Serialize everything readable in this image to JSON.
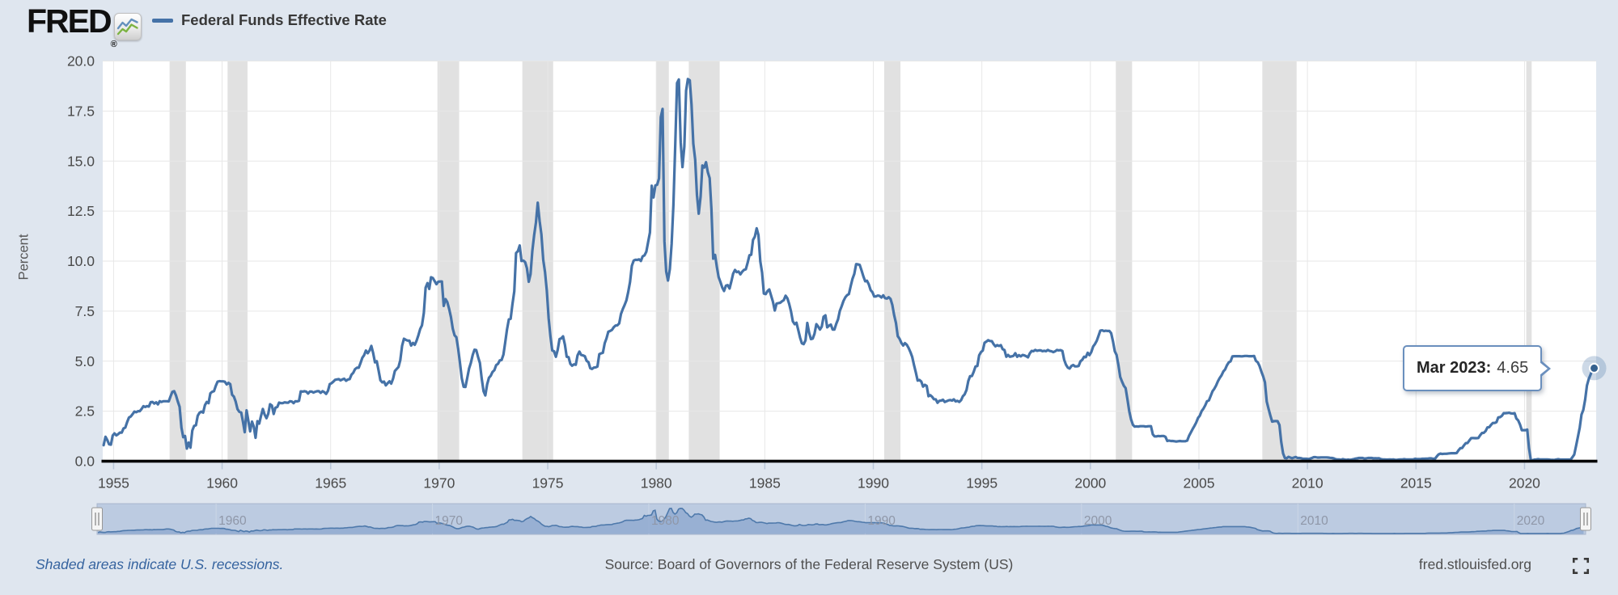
{
  "header": {
    "logo_text": "FRED",
    "logo_registered": "®",
    "legend": {
      "series_label": "Federal Funds Effective Rate",
      "series_color": "#4572a7"
    }
  },
  "tooltip": {
    "label": "Mar 2023:",
    "value": "4.65"
  },
  "footer": {
    "recession_note": "Shaded areas indicate U.S. recessions.",
    "source": "Source: Board of Governors of the Federal Reserve System (US)",
    "site": "fred.stlouisfed.org"
  },
  "chart_data": {
    "type": "line",
    "title": "Federal Funds Effective Rate",
    "ylabel": "Percent",
    "ylim": [
      0,
      20
    ],
    "y_ticks": [
      "0.0",
      "2.5",
      "5.0",
      "7.5",
      "10.0",
      "12.5",
      "15.0",
      "17.5",
      "20.0"
    ],
    "x_ticks": [
      1955,
      1960,
      1965,
      1970,
      1975,
      1980,
      1985,
      1990,
      1995,
      2000,
      2005,
      2010,
      2015,
      2020
    ],
    "grid": true,
    "legend_position": "top-left",
    "last_point": {
      "date": "Mar 2023",
      "value": 4.65
    },
    "colors": {
      "series": "#4572a7",
      "grid": "#e7e7e7",
      "recession_band": "#e1e1e1",
      "axis_line": "#000000",
      "plot_bg": "#ffffff",
      "page_bg": "#dfe6ef",
      "nav_track": "#bccbe1",
      "nav_area": "#8fa9d0",
      "nav_line": "#4e79ab"
    },
    "recessions": [
      {
        "from": 1957.58,
        "to": 1958.33
      },
      {
        "from": 1960.25,
        "to": 1961.17
      },
      {
        "from": 1969.92,
        "to": 1970.92
      },
      {
        "from": 1973.83,
        "to": 1975.25
      },
      {
        "from": 1980.0,
        "to": 1980.58
      },
      {
        "from": 1981.5,
        "to": 1982.92
      },
      {
        "from": 1990.5,
        "to": 1991.25
      },
      {
        "from": 2001.17,
        "to": 2001.92
      },
      {
        "from": 2007.92,
        "to": 2009.5
      },
      {
        "from": 2020.08,
        "to": 2020.33
      }
    ],
    "navigator": {
      "labels": [
        1960,
        1970,
        1980,
        1990,
        2000,
        2010,
        2020
      ]
    },
    "series": [
      {
        "name": "Federal Funds Effective Rate",
        "color": "#4572a7",
        "units": "Percent",
        "frequency": "monthly",
        "start": "1954-07",
        "end": "2023-03",
        "values": [
          0.8,
          1.22,
          1.06,
          0.85,
          0.83,
          1.28,
          1.39,
          1.29,
          1.35,
          1.43,
          1.43,
          1.64,
          1.68,
          1.96,
          2.18,
          2.24,
          2.35,
          2.48,
          2.45,
          2.5,
          2.5,
          2.62,
          2.75,
          2.71,
          2.75,
          2.73,
          2.95,
          2.96,
          2.88,
          2.94,
          2.84,
          3.0,
          2.96,
          3.0,
          3.0,
          3.0,
          2.99,
          3.24,
          3.47,
          3.5,
          3.28,
          2.98,
          2.72,
          1.67,
          1.2,
          1.26,
          0.63,
          0.93,
          0.68,
          1.53,
          1.76,
          1.8,
          2.27,
          2.42,
          2.48,
          2.43,
          2.8,
          2.96,
          2.9,
          3.39,
          3.47,
          3.5,
          3.76,
          3.98,
          4.0,
          3.99,
          3.99,
          3.97,
          3.84,
          3.92,
          3.85,
          3.32,
          3.23,
          2.98,
          2.6,
          2.47,
          2.44,
          1.98,
          1.45,
          2.54,
          2.02,
          1.49,
          1.98,
          1.73,
          1.17,
          2.0,
          1.88,
          2.26,
          2.61,
          2.33,
          2.15,
          2.37,
          2.85,
          2.78,
          2.36,
          2.68,
          2.71,
          2.93,
          2.9,
          2.9,
          2.94,
          2.93,
          2.92,
          3.0,
          2.98,
          2.9,
          3.0,
          2.99,
          3.02,
          3.49,
          3.48,
          3.5,
          3.48,
          3.38,
          3.48,
          3.48,
          3.43,
          3.47,
          3.5,
          3.5,
          3.42,
          3.5,
          3.45,
          3.36,
          3.52,
          3.85,
          3.9,
          3.98,
          4.07,
          4.09,
          4.1,
          4.04,
          4.09,
          4.12,
          4.02,
          4.08,
          4.1,
          4.32,
          4.42,
          4.6,
          4.67,
          4.67,
          4.9,
          5.17,
          5.3,
          5.53,
          5.4,
          5.53,
          5.76,
          5.4,
          4.94,
          5.0,
          4.53,
          4.05,
          3.94,
          3.98,
          3.79,
          3.9,
          3.99,
          3.88,
          4.13,
          4.51,
          4.61,
          4.71,
          5.05,
          5.76,
          6.12,
          6.07,
          6.03,
          6.03,
          5.78,
          5.91,
          5.82,
          6.02,
          6.3,
          6.61,
          6.79,
          7.41,
          8.67,
          8.9,
          8.61,
          9.19,
          9.15,
          9.0,
          8.85,
          8.97,
          8.98,
          8.98,
          7.76,
          8.1,
          7.95,
          7.61,
          7.21,
          6.62,
          6.29,
          6.2,
          5.6,
          4.9,
          4.14,
          3.72,
          3.71,
          4.15,
          4.63,
          4.91,
          5.31,
          5.57,
          5.55,
          5.2,
          4.91,
          4.14,
          3.5,
          3.29,
          3.83,
          4.17,
          4.27,
          4.46,
          4.55,
          4.8,
          4.87,
          5.04,
          5.06,
          5.33,
          5.94,
          6.58,
          7.09,
          7.12,
          7.84,
          8.49,
          10.4,
          10.5,
          10.78,
          10.01,
          10.03,
          9.95,
          9.65,
          8.97,
          9.35,
          10.51,
          11.31,
          11.93,
          12.92,
          12.01,
          11.34,
          10.06,
          9.45,
          8.53,
          7.13,
          6.24,
          5.54,
          5.49,
          5.22,
          5.55,
          6.1,
          6.14,
          6.24,
          5.82,
          5.22,
          5.2,
          4.87,
          4.77,
          4.84,
          4.82,
          5.29,
          5.48,
          5.31,
          5.29,
          5.25,
          5.02,
          4.95,
          4.65,
          4.61,
          4.68,
          4.69,
          4.73,
          5.35,
          5.39,
          5.42,
          5.9,
          6.14,
          6.47,
          6.51,
          6.56,
          6.7,
          6.78,
          6.79,
          6.89,
          7.36,
          7.6,
          7.81,
          8.04,
          8.45,
          8.96,
          9.76,
          10.03,
          10.07,
          10.06,
          10.09,
          10.01,
          10.24,
          10.29,
          10.47,
          10.94,
          11.43,
          13.77,
          13.18,
          13.78,
          13.82,
          14.13,
          17.19,
          17.61,
          10.98,
          9.47,
          9.03,
          9.61,
          10.87,
          12.81,
          15.85,
          18.9,
          19.08,
          15.93,
          14.7,
          15.72,
          18.52,
          19.1,
          19.04,
          17.82,
          15.87,
          15.08,
          13.31,
          12.37,
          13.22,
          14.78,
          14.68,
          14.94,
          14.45,
          14.15,
          12.59,
          10.12,
          10.31,
          9.71,
          9.2,
          8.95,
          8.68,
          8.51,
          8.77,
          8.8,
          8.63,
          8.98,
          9.37,
          9.56,
          9.45,
          9.48,
          9.34,
          9.47,
          9.56,
          9.59,
          9.91,
          10.29,
          10.32,
          11.06,
          11.23,
          11.64,
          11.3,
          9.99,
          9.43,
          8.38,
          8.35,
          8.5,
          8.58,
          8.27,
          7.97,
          7.53,
          7.88,
          7.9,
          7.92,
          7.99,
          8.05,
          8.27,
          8.14,
          7.86,
          7.48,
          6.99,
          6.85,
          6.92,
          6.56,
          6.17,
          5.89,
          5.85,
          6.04,
          6.91,
          6.43,
          6.1,
          6.13,
          6.37,
          6.85,
          6.73,
          6.58,
          6.73,
          7.22,
          7.29,
          6.69,
          6.77,
          6.83,
          6.58,
          6.58,
          6.87,
          7.09,
          7.51,
          7.75,
          8.01,
          8.19,
          8.3,
          8.35,
          8.76,
          9.12,
          9.36,
          9.85,
          9.84,
          9.81,
          9.53,
          9.24,
          8.99,
          9.02,
          8.84,
          8.55,
          8.45,
          8.23,
          8.24,
          8.28,
          8.26,
          8.18,
          8.29,
          8.15,
          8.13,
          8.2,
          8.11,
          7.81,
          7.31,
          6.91,
          6.25,
          6.12,
          5.91,
          5.78,
          5.9,
          5.82,
          5.66,
          5.45,
          5.21,
          4.81,
          4.43,
          4.03,
          4.06,
          3.98,
          3.73,
          3.82,
          3.76,
          3.25,
          3.3,
          3.22,
          3.1,
          3.09,
          2.92,
          3.02,
          3.03,
          3.07,
          2.96,
          3.0,
          3.04,
          3.06,
          3.03,
          3.09,
          2.99,
          3.02,
          2.96,
          3.05,
          3.25,
          3.34,
          3.56,
          4.01,
          4.25,
          4.26,
          4.47,
          4.73,
          4.76,
          5.29,
          5.45,
          5.53,
          5.92,
          5.98,
          6.05,
          6.01,
          6.0,
          5.85,
          5.74,
          5.8,
          5.76,
          5.8,
          5.6,
          5.56,
          5.22,
          5.31,
          5.22,
          5.24,
          5.27,
          5.4,
          5.22,
          5.3,
          5.24,
          5.31,
          5.29,
          5.25,
          5.19,
          5.39,
          5.51,
          5.5,
          5.56,
          5.52,
          5.54,
          5.54,
          5.5,
          5.52,
          5.5,
          5.56,
          5.51,
          5.49,
          5.45,
          5.49,
          5.56,
          5.54,
          5.55,
          5.51,
          5.07,
          4.83,
          4.68,
          4.63,
          4.76,
          4.81,
          4.74,
          4.74,
          4.76,
          4.99,
          5.07,
          5.22,
          5.2,
          5.42,
          5.3,
          5.45,
          5.73,
          5.85,
          6.02,
          6.27,
          6.53,
          6.54,
          6.5,
          6.52,
          6.51,
          6.51,
          6.4,
          5.98,
          5.49,
          5.31,
          4.8,
          4.21,
          3.97,
          3.77,
          3.65,
          3.07,
          2.49,
          2.09,
          1.82,
          1.73,
          1.74,
          1.73,
          1.75,
          1.75,
          1.75,
          1.73,
          1.74,
          1.75,
          1.75,
          1.34,
          1.24,
          1.24,
          1.26,
          1.25,
          1.26,
          1.26,
          1.22,
          1.01,
          1.03,
          1.01,
          1.01,
          1.0,
          0.98,
          1.0,
          1.01,
          1.0,
          1.0,
          1.0,
          1.03,
          1.26,
          1.43,
          1.61,
          1.76,
          1.93,
          2.16,
          2.28,
          2.5,
          2.63,
          2.79,
          3.0,
          3.04,
          3.26,
          3.5,
          3.62,
          3.78,
          4.0,
          4.16,
          4.29,
          4.49,
          4.59,
          4.79,
          4.94,
          4.99,
          5.24,
          5.25,
          5.25,
          5.25,
          5.25,
          5.24,
          5.25,
          5.26,
          5.26,
          5.25,
          5.25,
          5.25,
          5.26,
          5.02,
          4.94,
          4.76,
          4.49,
          4.24,
          3.94,
          2.98,
          2.61,
          2.28,
          1.98,
          2.0,
          2.01,
          2.0,
          1.81,
          0.97,
          0.39,
          0.16,
          0.15,
          0.22,
          0.18,
          0.15,
          0.18,
          0.21,
          0.16,
          0.16,
          0.15,
          0.12,
          0.12,
          0.12,
          0.11,
          0.13,
          0.16,
          0.2,
          0.2,
          0.18,
          0.18,
          0.19,
          0.19,
          0.19,
          0.19,
          0.18,
          0.17,
          0.16,
          0.14,
          0.1,
          0.09,
          0.09,
          0.07,
          0.1,
          0.08,
          0.07,
          0.08,
          0.07,
          0.08,
          0.1,
          0.13,
          0.14,
          0.16,
          0.16,
          0.16,
          0.13,
          0.14,
          0.16,
          0.16,
          0.16,
          0.14,
          0.15,
          0.14,
          0.15,
          0.11,
          0.09,
          0.09,
          0.08,
          0.08,
          0.09,
          0.08,
          0.09,
          0.07,
          0.07,
          0.08,
          0.09,
          0.09,
          0.1,
          0.09,
          0.09,
          0.09,
          0.09,
          0.09,
          0.12,
          0.11,
          0.11,
          0.11,
          0.12,
          0.12,
          0.13,
          0.13,
          0.14,
          0.14,
          0.12,
          0.12,
          0.24,
          0.34,
          0.38,
          0.36,
          0.37,
          0.37,
          0.38,
          0.39,
          0.4,
          0.4,
          0.4,
          0.41,
          0.54,
          0.65,
          0.66,
          0.79,
          0.9,
          0.91,
          1.04,
          1.15,
          1.16,
          1.15,
          1.15,
          1.16,
          1.3,
          1.41,
          1.42,
          1.51,
          1.69,
          1.7,
          1.82,
          1.91,
          1.91,
          1.95,
          2.19,
          2.2,
          2.27,
          2.4,
          2.4,
          2.41,
          2.42,
          2.39,
          2.38,
          2.4,
          2.13,
          2.04,
          1.83,
          1.55,
          1.55,
          1.55,
          1.58,
          0.65,
          0.05,
          0.05,
          0.08,
          0.09,
          0.1,
          0.09,
          0.09,
          0.09,
          0.09,
          0.09,
          0.08,
          0.07,
          0.07,
          0.06,
          0.08,
          0.1,
          0.09,
          0.08,
          0.08,
          0.08,
          0.08,
          0.08,
          0.08,
          0.2,
          0.33,
          0.77,
          1.21,
          1.68,
          2.33,
          2.56,
          3.08,
          3.78,
          4.1,
          4.33,
          4.57,
          4.65
        ]
      }
    ]
  }
}
